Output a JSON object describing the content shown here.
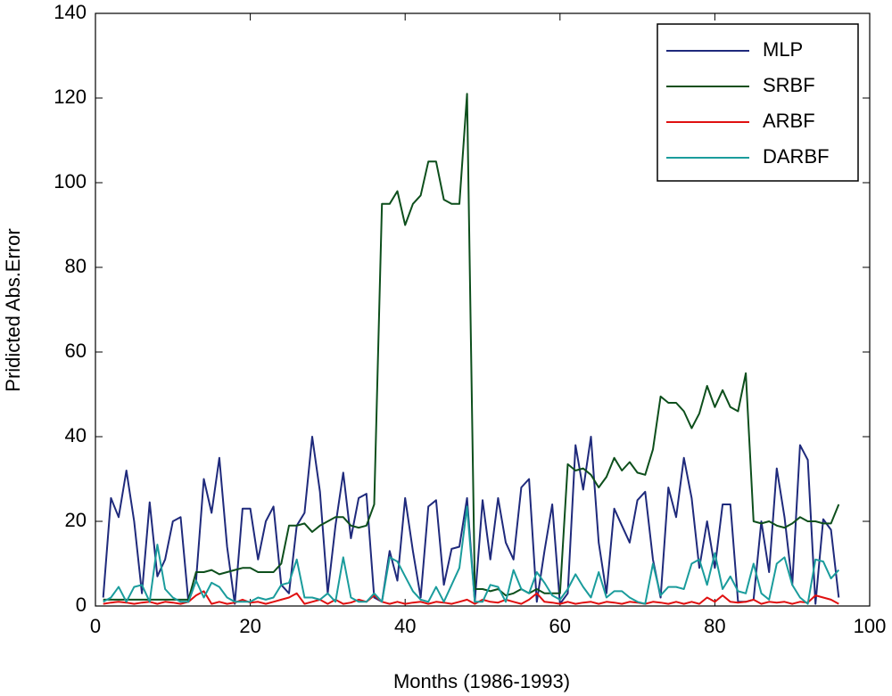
{
  "chart_data": {
    "type": "line",
    "x_label": "Months (1986-1993)",
    "y_label": "Pridicted Abs.Error",
    "x": [
      1,
      2,
      3,
      4,
      5,
      6,
      7,
      8,
      9,
      10,
      11,
      12,
      13,
      14,
      15,
      16,
      17,
      18,
      19,
      20,
      21,
      22,
      23,
      24,
      25,
      26,
      27,
      28,
      29,
      30,
      31,
      32,
      33,
      34,
      35,
      36,
      37,
      38,
      39,
      40,
      41,
      42,
      43,
      44,
      45,
      46,
      47,
      48,
      49,
      50,
      51,
      52,
      53,
      54,
      55,
      56,
      57,
      58,
      59,
      60,
      61,
      62,
      63,
      64,
      65,
      66,
      67,
      68,
      69,
      70,
      71,
      72,
      73,
      74,
      75,
      76,
      77,
      78,
      79,
      80,
      81,
      82,
      83,
      84,
      85,
      86,
      87,
      88,
      89,
      90,
      91,
      92,
      93,
      94,
      95,
      96
    ],
    "series": [
      {
        "name": "MLP",
        "color": "#1f2a7c",
        "values": [
          2,
          25.5,
          21,
          32,
          20,
          3,
          24.5,
          7,
          11,
          20,
          21,
          1,
          6,
          30,
          22,
          35,
          14,
          0.5,
          23,
          23,
          11,
          20,
          23.5,
          5,
          3,
          19,
          22,
          40,
          27,
          3,
          19,
          31.5,
          16,
          25.5,
          26.5,
          2,
          1,
          13,
          6,
          25.5,
          13,
          2,
          23.5,
          25,
          5,
          13.5,
          14,
          25.5,
          1,
          25,
          11,
          25.5,
          15,
          11,
          28,
          30,
          1,
          13,
          24,
          0.5,
          3,
          38,
          27.5,
          40,
          15,
          3,
          23,
          19,
          15,
          25,
          27,
          11,
          2,
          28,
          21,
          35,
          25.5,
          9,
          20,
          9,
          24,
          24,
          1,
          1,
          1.5,
          20,
          8,
          32.5,
          21,
          5,
          38,
          34.5,
          0.5,
          20.5,
          18,
          2
        ]
      },
      {
        "name": "SRBF",
        "color": "#0d4f1c",
        "values": [
          1.5,
          1.5,
          1.5,
          1.5,
          1.5,
          1.5,
          1.5,
          1.5,
          1.5,
          1.5,
          1.5,
          1.5,
          8,
          8,
          8.5,
          7.5,
          8,
          8.5,
          9,
          9,
          8,
          8,
          8,
          10,
          19,
          19,
          19.5,
          17.5,
          19,
          20,
          21,
          21,
          19,
          18.5,
          19,
          24,
          95,
          95,
          98,
          90,
          95,
          97,
          105,
          105,
          96,
          95,
          95,
          121,
          4,
          4,
          3.5,
          4,
          2.5,
          3,
          4,
          3,
          4,
          3,
          3,
          3,
          33.5,
          32,
          32.5,
          31,
          28,
          30.5,
          35,
          32,
          34,
          31.5,
          31,
          37,
          49.5,
          48,
          48,
          46,
          42,
          45.5,
          52,
          47,
          51,
          47,
          46,
          55,
          20,
          19.5,
          20,
          19,
          18.5,
          19.5,
          21,
          20,
          20,
          19.5,
          19.5,
          24
        ]
      },
      {
        "name": "ARBF",
        "color": "#e01010",
        "values": [
          0.5,
          0.8,
          1,
          0.8,
          0.5,
          0.8,
          1,
          0.5,
          1,
          0.8,
          0.5,
          1,
          2.5,
          3.5,
          0.5,
          1,
          0.5,
          0.8,
          1.5,
          0.8,
          1,
          0.5,
          1,
          1.5,
          2,
          3,
          0.5,
          1,
          1.5,
          0.5,
          1.5,
          0.5,
          0.8,
          1.5,
          1,
          2.5,
          1,
          0.5,
          1,
          0.5,
          0.8,
          1,
          0.5,
          1,
          0.8,
          0.5,
          1,
          1.5,
          0.5,
          1.5,
          1,
          0.8,
          1.5,
          1,
          0.5,
          1.5,
          3,
          1,
          0.8,
          0.5,
          1,
          0.5,
          0.8,
          1,
          0.5,
          1,
          0.8,
          0.5,
          1,
          0.8,
          0.5,
          1,
          0.8,
          0.5,
          1,
          0.5,
          1,
          0.5,
          2,
          1,
          2.5,
          1,
          0.8,
          1,
          1.5,
          0.5,
          1,
          0.8,
          1,
          0.5,
          1,
          0.8,
          2.5,
          2,
          1.5,
          0.5
        ]
      },
      {
        "name": "DARBF",
        "color": "#1a9c9c",
        "values": [
          1,
          2,
          4.5,
          1,
          4.5,
          5,
          1,
          14.5,
          4,
          2,
          1,
          1,
          6,
          2,
          5.5,
          4.5,
          2,
          1,
          1,
          1,
          2,
          1.5,
          2,
          5,
          5.5,
          11,
          2,
          2,
          1.5,
          3,
          1,
          11.5,
          2,
          1,
          1,
          3,
          1,
          11.5,
          10.5,
          7,
          3.5,
          1.5,
          1,
          4.5,
          1,
          5,
          9,
          23.5,
          1,
          1,
          5,
          4.5,
          1,
          8.5,
          4,
          3,
          8,
          5.5,
          2.5,
          1.5,
          4,
          7.5,
          4.5,
          2,
          8,
          2,
          3.5,
          3.5,
          2,
          1,
          0.5,
          10,
          2.5,
          4.5,
          4.5,
          4,
          10,
          11,
          5,
          12.5,
          4,
          7,
          3.5,
          3,
          10,
          3,
          1.5,
          10,
          11.5,
          5,
          2,
          0.5,
          11,
          10.5,
          6.5,
          8.5
        ]
      }
    ],
    "xlim": [
      0,
      100
    ],
    "xticks": [
      0,
      20,
      40,
      60,
      80,
      100
    ],
    "ylim": [
      0,
      140
    ],
    "yticks": [
      0,
      20,
      40,
      60,
      80,
      100,
      120,
      140
    ],
    "legend": "upper right"
  }
}
